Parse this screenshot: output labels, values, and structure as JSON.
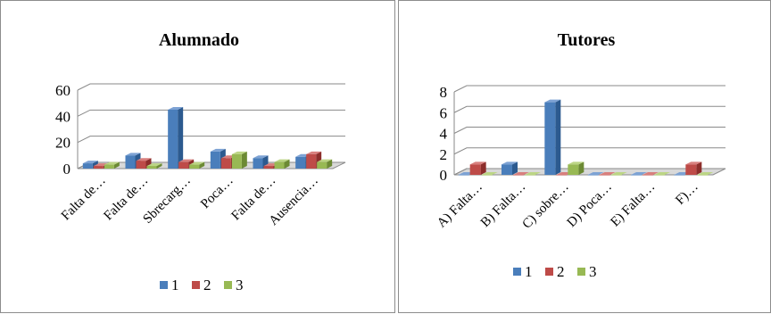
{
  "chart_data": [
    {
      "type": "bar",
      "title": "Alumnado",
      "categories": [
        "Falta de…",
        "Falta de…",
        "Sbrecarg…",
        "Poca…",
        "Falta de…",
        "Ausencia…"
      ],
      "series": [
        {
          "name": "1",
          "values": [
            4,
            10,
            45,
            13,
            8,
            9
          ]
        },
        {
          "name": "2",
          "values": [
            2,
            6,
            5,
            8,
            2,
            11
          ]
        },
        {
          "name": "3",
          "values": [
            3,
            2,
            3,
            11,
            5,
            5
          ]
        }
      ],
      "yticks": [
        0,
        20,
        40,
        60
      ],
      "ylim": [
        0,
        60
      ],
      "legend_position": "bottom",
      "grid": true
    },
    {
      "type": "bar",
      "title": "Tutores",
      "categories": [
        "A) Falta…",
        "B) Falta…",
        "C) sobre…",
        "D) Poca…",
        "E) Falta…",
        "F)…"
      ],
      "series": [
        {
          "name": "1",
          "values": [
            0,
            1,
            7,
            0,
            0,
            0
          ]
        },
        {
          "name": "2",
          "values": [
            1,
            0,
            0,
            0,
            0,
            1
          ]
        },
        {
          "name": "3",
          "values": [
            0,
            0,
            1,
            0,
            0,
            0
          ]
        }
      ],
      "yticks": [
        0,
        2,
        4,
        6,
        8
      ],
      "ylim": [
        0,
        8
      ],
      "legend_position": "bottom",
      "grid": true
    }
  ],
  "colors": {
    "series_fronts": [
      "#4a7ebb",
      "#be4b48",
      "#98b954"
    ],
    "series_tops": [
      "#7da2d4",
      "#d87f7d",
      "#bcd585"
    ],
    "series_sides": [
      "#2c5a8f",
      "#8c2e2b",
      "#6c8a34"
    ]
  }
}
